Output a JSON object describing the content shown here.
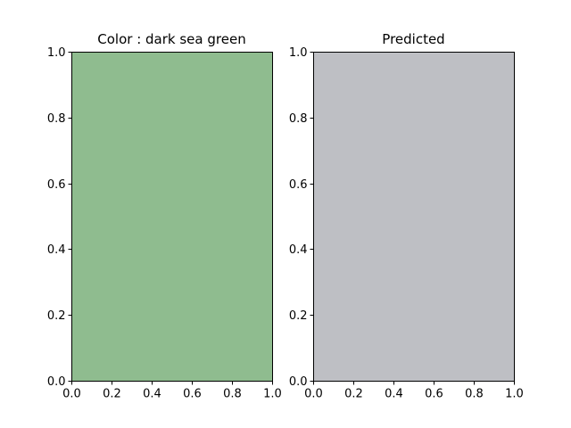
{
  "chart_data": [
    {
      "type": "bar",
      "title": "Color : dark sea green",
      "fill_color": "#8fbc8f",
      "xlim": [
        0.0,
        1.0
      ],
      "ylim": [
        0.0,
        1.0
      ],
      "xticks": [
        "0.0",
        "0.2",
        "0.4",
        "0.6",
        "0.8",
        "1.0"
      ],
      "yticks": [
        "0.0",
        "0.2",
        "0.4",
        "0.6",
        "0.8",
        "1.0"
      ],
      "xlabel": "",
      "ylabel": "",
      "grid": false
    },
    {
      "type": "bar",
      "title": "Predicted",
      "fill_color": "#bebfc4",
      "xlim": [
        0.0,
        1.0
      ],
      "ylim": [
        0.0,
        1.0
      ],
      "xticks": [
        "0.0",
        "0.2",
        "0.4",
        "0.6",
        "0.8",
        "1.0"
      ],
      "yticks": [
        "0.0",
        "0.2",
        "0.4",
        "0.6",
        "0.8",
        "1.0"
      ],
      "xlabel": "",
      "ylabel": "",
      "grid": false
    }
  ]
}
